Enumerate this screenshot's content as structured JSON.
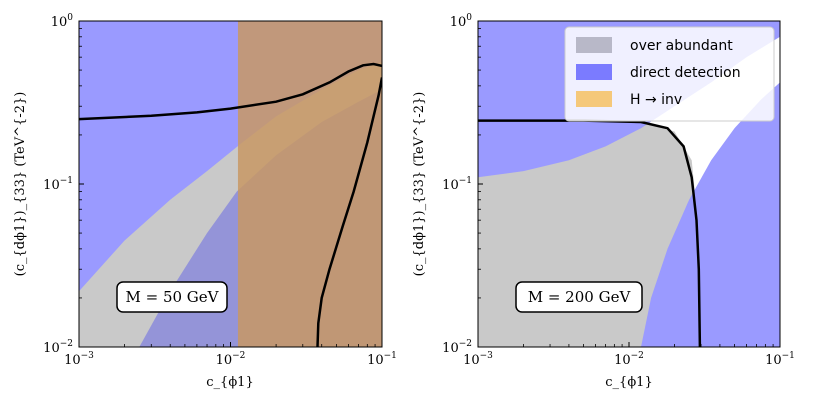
{
  "chart_data": [
    {
      "type": "area",
      "panel": "left",
      "xlabel": "c_{ϕ1}",
      "ylabel": "(c_{dϕ1})_{33} (TeV^{-2})",
      "xscale": "log",
      "yscale": "log",
      "xlim": [
        0.001,
        0.1
      ],
      "ylim": [
        0.01,
        1
      ],
      "x_ticks": [
        {
          "value": 0.001,
          "label": "10",
          "exp": "−3"
        },
        {
          "value": 0.01,
          "label": "10",
          "exp": "−2"
        },
        {
          "value": 0.1,
          "label": "10",
          "exp": "−1"
        }
      ],
      "y_ticks": [
        {
          "value": 0.01,
          "label": "10",
          "exp": "−2"
        },
        {
          "value": 0.1,
          "label": "10",
          "exp": "−1"
        },
        {
          "value": 1,
          "label": "10",
          "exp": "0"
        }
      ],
      "annotation": "M = 50 GeV",
      "regions": [
        {
          "name": "over abundant",
          "color": "#c9c9c9",
          "polygon": [
            [
              0.001,
              0.01
            ],
            [
              0.001,
              0.022
            ],
            [
              0.002,
              0.045
            ],
            [
              0.004,
              0.08
            ],
            [
              0.007,
              0.12
            ],
            [
              0.012,
              0.18
            ],
            [
              0.02,
              0.26
            ],
            [
              0.04,
              0.38
            ],
            [
              0.07,
              0.5
            ],
            [
              0.1,
              0.56
            ],
            [
              0.1,
              0.01
            ]
          ]
        },
        {
          "name": "direct detection",
          "color": "#9a9aff",
          "polygon": [
            [
              0.001,
              1
            ],
            [
              0.1,
              1
            ],
            [
              0.1,
              0.01
            ],
            [
              0.0025,
              0.01
            ],
            [
              0.004,
              0.022
            ],
            [
              0.007,
              0.05
            ],
            [
              0.011,
              0.09
            ],
            [
              0.02,
              0.15
            ],
            [
              0.04,
              0.24
            ],
            [
              0.07,
              0.32
            ],
            [
              0.1,
              0.38
            ],
            [
              0.1,
              0.01
            ],
            [
              0.1,
              0.01
            ],
            [
              0.1,
              1
            ]
          ],
          "lower_polygon": [
            [
              0.001,
              0.01
            ],
            [
              0.001,
              0.022
            ],
            [
              0.002,
              0.035
            ],
            [
              0.004,
              0.06
            ],
            [
              0.007,
              0.09
            ],
            [
              0.012,
              0.13
            ],
            [
              0.02,
              0.18
            ],
            [
              0.04,
              0.26
            ],
            [
              0.07,
              0.35
            ],
            [
              0.1,
              0.4
            ],
            [
              0.1,
              1
            ],
            [
              0.001,
              1
            ]
          ]
        },
        {
          "name": "H → inv",
          "color": "#d2a064",
          "xmin": 0.0112
        }
      ],
      "contours": [
        {
          "name": "upper contour",
          "x": [
            0.001,
            0.003,
            0.006,
            0.01,
            0.02,
            0.03,
            0.045,
            0.06,
            0.075,
            0.088,
            0.1
          ],
          "y": [
            0.25,
            0.262,
            0.275,
            0.29,
            0.32,
            0.355,
            0.42,
            0.49,
            0.535,
            0.545,
            0.53
          ]
        },
        {
          "name": "right contour",
          "x": [
            0.0375,
            0.038,
            0.04,
            0.045,
            0.055,
            0.065,
            0.08,
            0.095,
            0.1
          ],
          "y": [
            0.01,
            0.014,
            0.02,
            0.03,
            0.055,
            0.09,
            0.18,
            0.35,
            0.45
          ]
        }
      ]
    },
    {
      "type": "area",
      "panel": "right",
      "xlabel": "c_{ϕ1}",
      "ylabel": "(c_{dϕ1})_{33} (TeV^{-2})",
      "xscale": "log",
      "yscale": "log",
      "xlim": [
        0.001,
        0.1
      ],
      "ylim": [
        0.01,
        1
      ],
      "x_ticks": [
        {
          "value": 0.001,
          "label": "10",
          "exp": "−3"
        },
        {
          "value": 0.01,
          "label": "10",
          "exp": "−2"
        },
        {
          "value": 0.1,
          "label": "10",
          "exp": "−1"
        }
      ],
      "y_ticks": [
        {
          "value": 0.01,
          "label": "10",
          "exp": "−2"
        },
        {
          "value": 0.1,
          "label": "10",
          "exp": "−1"
        },
        {
          "value": 1,
          "label": "10",
          "exp": "0"
        }
      ],
      "annotation": "M = 200 GeV",
      "legend": [
        {
          "label": "over abundant",
          "color": "#b8b8c8"
        },
        {
          "label": "direct detection",
          "color": "#7b7bff"
        },
        {
          "label": "H → inv",
          "color": "#f5c87a"
        }
      ],
      "legend_position": "top-right",
      "regions": [
        {
          "name": "over abundant",
          "color": "#c9c9c9",
          "polygon": [
            [
              0.001,
              0.01
            ],
            [
              0.001,
              0.245
            ],
            [
              0.005,
              0.245
            ],
            [
              0.012,
              0.24
            ],
            [
              0.02,
              0.21
            ],
            [
              0.026,
              0.14
            ],
            [
              0.028,
              0.07
            ],
            [
              0.029,
              0.03
            ],
            [
              0.0295,
              0.01
            ]
          ]
        },
        {
          "name": "direct detection upper",
          "color": "#9a9aff",
          "polygon": [
            [
              0.001,
              0.11
            ],
            [
              0.002,
              0.12
            ],
            [
              0.004,
              0.14
            ],
            [
              0.007,
              0.17
            ],
            [
              0.012,
              0.22
            ],
            [
              0.02,
              0.3
            ],
            [
              0.035,
              0.42
            ],
            [
              0.06,
              0.6
            ],
            [
              0.1,
              0.8
            ],
            [
              0.1,
              1
            ],
            [
              0.001,
              1
            ]
          ]
        },
        {
          "name": "direct detection lower",
          "color": "#9a9aff",
          "polygon": [
            [
              0.012,
              0.01
            ],
            [
              0.014,
              0.02
            ],
            [
              0.018,
              0.04
            ],
            [
              0.025,
              0.08
            ],
            [
              0.035,
              0.14
            ],
            [
              0.05,
              0.22
            ],
            [
              0.075,
              0.33
            ],
            [
              0.1,
              0.42
            ],
            [
              0.1,
              0.01
            ]
          ]
        }
      ],
      "contours": [
        {
          "name": "boundary contour",
          "x": [
            0.001,
            0.005,
            0.012,
            0.018,
            0.023,
            0.026,
            0.028,
            0.029,
            0.0295
          ],
          "y": [
            0.245,
            0.245,
            0.24,
            0.22,
            0.17,
            0.11,
            0.06,
            0.03,
            0.01
          ]
        }
      ]
    }
  ]
}
